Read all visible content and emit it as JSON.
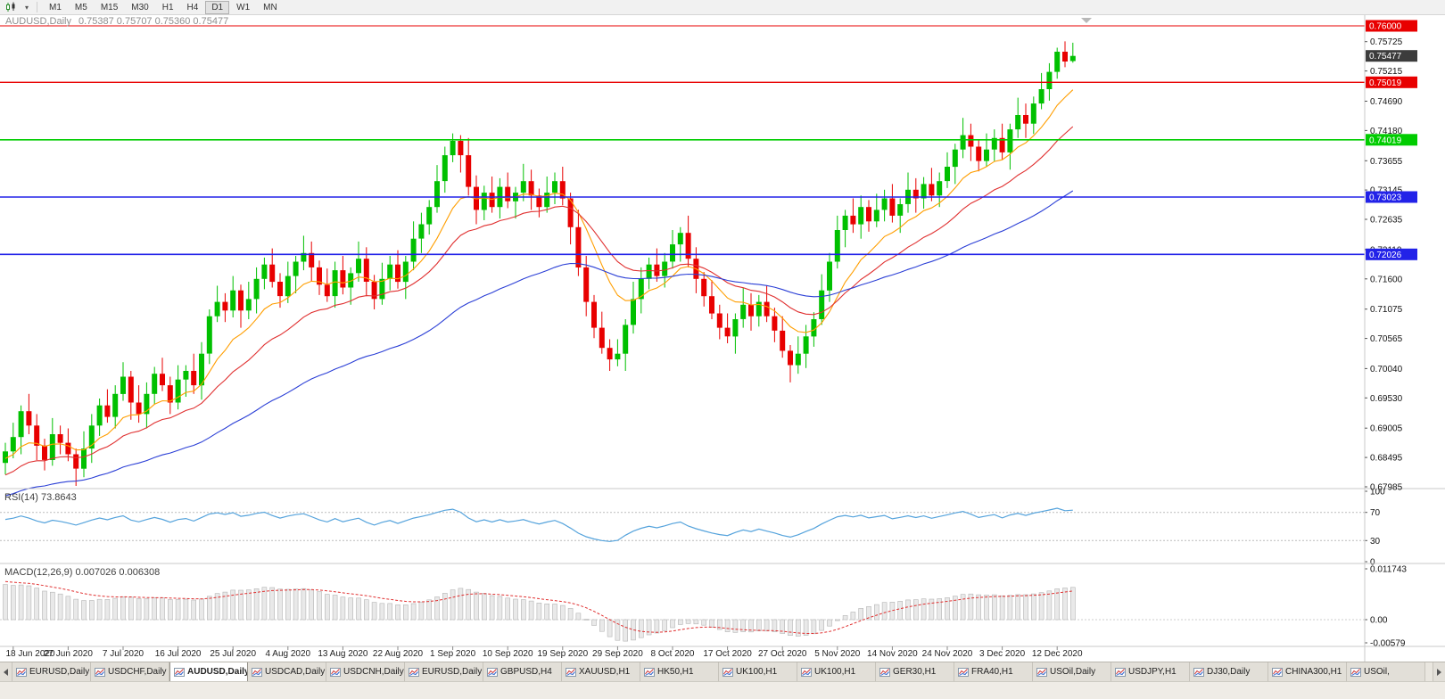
{
  "toolbar": {
    "timeframes": [
      "M1",
      "M5",
      "M15",
      "M30",
      "H1",
      "H4",
      "D1",
      "W1",
      "MN"
    ],
    "active_timeframe": "D1"
  },
  "chart": {
    "title_symbol": "AUDUSD,Daily",
    "title_ohlc": "0.75387 0.75707 0.75360 0.75477"
  },
  "chart_data": {
    "type": "candlestick",
    "symbol": "AUDUSD",
    "period": "Daily",
    "ohlc": {
      "open": 0.75387,
      "high": 0.75707,
      "low": 0.7536,
      "close": 0.75477
    },
    "colors": {
      "up": "#00C000",
      "down": "#E80000"
    },
    "price_axis_labels": [
      "0.75725",
      "0.75215",
      "0.74690",
      "0.74180",
      "0.73655",
      "0.73145",
      "0.72635",
      "0.72110",
      "0.71600",
      "0.71075",
      "0.70565",
      "0.70040",
      "0.69530",
      "0.69005",
      "0.68495",
      "0.67985"
    ],
    "current_price_badge": {
      "label": "0.75477",
      "color": "#3c3c3c"
    },
    "hlines": [
      {
        "label": "0.76000",
        "price": 0.76,
        "color": "#E80000",
        "width": 1
      },
      {
        "label": "0.75019",
        "price": 0.75019,
        "color": "#E80000",
        "width": 1.4
      },
      {
        "label": "0.74019",
        "price": 0.74019,
        "color": "#00CC00",
        "width": 1.6
      },
      {
        "label": "0.73023",
        "price": 0.73023,
        "color": "#2222E8",
        "width": 1.6
      },
      {
        "label": "0.72026",
        "price": 0.72026,
        "color": "#2222E8",
        "width": 1.6
      }
    ],
    "date_labels": [
      "18 Jun 2020",
      "27 Jun 2020",
      "7 Jul 2020",
      "16 Jul 2020",
      "25 Jul 2020",
      "4 Aug 2020",
      "13 Aug 2020",
      "22 Aug 2020",
      "1 Sep 2020",
      "10 Sep 2020",
      "19 Sep 2020",
      "29 Sep 2020",
      "8 Oct 2020",
      "17 Oct 2020",
      "27 Oct 2020",
      "5 Nov 2020",
      "14 Nov 2020",
      "24 Nov 2020",
      "3 Dec 2020",
      "12 Dec 2020"
    ],
    "moving_averages": [
      {
        "period": 10,
        "color": "#FF9E00"
      },
      {
        "period": 21,
        "color": "#E03030"
      },
      {
        "period": 55,
        "color": "#2B3FD6"
      }
    ],
    "indicators": {
      "rsi": {
        "label": "RSI(14) 73.8643",
        "period": 14,
        "value": 73.8643,
        "levels": [
          "100",
          "70",
          "30",
          "0"
        ],
        "line_color": "#55A3DC"
      },
      "macd": {
        "label": "MACD(12,26,9) 0.007026 0.006308",
        "fast": 12,
        "slow": 26,
        "signal": 9,
        "value": 0.007026,
        "signal_value": 0.006308,
        "axis_labels": [
          "0.011743",
          "0.00",
          "-0.00579"
        ],
        "hist_fill": "#E9E9E9",
        "hist_stroke": "#B4B4B4",
        "signal_color": "#E03030"
      }
    },
    "candles": [
      [
        0.684,
        0.6875,
        0.682,
        0.686
      ],
      [
        0.686,
        0.691,
        0.6848,
        0.6885
      ],
      [
        0.6885,
        0.694,
        0.6855,
        0.693
      ],
      [
        0.693,
        0.696,
        0.689,
        0.6905
      ],
      [
        0.6905,
        0.6925,
        0.6845,
        0.687
      ],
      [
        0.687,
        0.6882,
        0.6827,
        0.6845
      ],
      [
        0.6845,
        0.6918,
        0.6835,
        0.689
      ],
      [
        0.689,
        0.6905,
        0.6855,
        0.6875
      ],
      [
        0.6875,
        0.69,
        0.6843,
        0.6855
      ],
      [
        0.6855,
        0.6865,
        0.68,
        0.683
      ],
      [
        0.683,
        0.6895,
        0.6815,
        0.6865
      ],
      [
        0.6865,
        0.6925,
        0.684,
        0.6905
      ],
      [
        0.6905,
        0.6952,
        0.6887,
        0.694
      ],
      [
        0.694,
        0.6968,
        0.691,
        0.692
      ],
      [
        0.692,
        0.6975,
        0.69,
        0.696
      ],
      [
        0.696,
        0.7015,
        0.6948,
        0.699
      ],
      [
        0.699,
        0.7,
        0.6915,
        0.6945
      ],
      [
        0.6945,
        0.6975,
        0.691,
        0.6925
      ],
      [
        0.6925,
        0.698,
        0.69,
        0.696
      ],
      [
        0.696,
        0.7007,
        0.6942,
        0.6995
      ],
      [
        0.6995,
        0.7023,
        0.6965,
        0.6975
      ],
      [
        0.6975,
        0.699,
        0.6925,
        0.6945
      ],
      [
        0.6945,
        0.701,
        0.6933,
        0.6985
      ],
      [
        0.6985,
        0.701,
        0.6955,
        0.7
      ],
      [
        0.7,
        0.703,
        0.696,
        0.6975
      ],
      [
        0.6975,
        0.705,
        0.695,
        0.703
      ],
      [
        0.703,
        0.7107,
        0.7012,
        0.7095
      ],
      [
        0.7095,
        0.7148,
        0.7085,
        0.712
      ],
      [
        0.712,
        0.7135,
        0.7085,
        0.7105
      ],
      [
        0.7105,
        0.7165,
        0.7093,
        0.714
      ],
      [
        0.714,
        0.715,
        0.7075,
        0.7105
      ],
      [
        0.7105,
        0.7155,
        0.709,
        0.7125
      ],
      [
        0.7125,
        0.718,
        0.71,
        0.716
      ],
      [
        0.716,
        0.7197,
        0.7142,
        0.7185
      ],
      [
        0.7185,
        0.7213,
        0.7145,
        0.7155
      ],
      [
        0.7155,
        0.717,
        0.711,
        0.713
      ],
      [
        0.713,
        0.719,
        0.7118,
        0.7165
      ],
      [
        0.7165,
        0.72,
        0.7135,
        0.719
      ],
      [
        0.719,
        0.7235,
        0.7175,
        0.7205
      ],
      [
        0.7205,
        0.7225,
        0.7155,
        0.718
      ],
      [
        0.718,
        0.7192,
        0.7132,
        0.715
      ],
      [
        0.715,
        0.7178,
        0.712,
        0.713
      ],
      [
        0.713,
        0.719,
        0.711,
        0.7175
      ],
      [
        0.7175,
        0.72,
        0.7133,
        0.7145
      ],
      [
        0.7145,
        0.718,
        0.7115,
        0.717
      ],
      [
        0.717,
        0.7225,
        0.7155,
        0.7195
      ],
      [
        0.7195,
        0.7215,
        0.713,
        0.7155
      ],
      [
        0.7155,
        0.7167,
        0.7107,
        0.7125
      ],
      [
        0.7125,
        0.7188,
        0.7115,
        0.716
      ],
      [
        0.716,
        0.72,
        0.714,
        0.7185
      ],
      [
        0.7185,
        0.721,
        0.7143,
        0.7155
      ],
      [
        0.7155,
        0.72,
        0.7125,
        0.719
      ],
      [
        0.719,
        0.726,
        0.7175,
        0.723
      ],
      [
        0.723,
        0.7275,
        0.7205,
        0.7255
      ],
      [
        0.7255,
        0.7297,
        0.7237,
        0.7285
      ],
      [
        0.7285,
        0.7358,
        0.7275,
        0.733
      ],
      [
        0.733,
        0.739,
        0.731,
        0.7375
      ],
      [
        0.7375,
        0.7413,
        0.7363,
        0.74
      ],
      [
        0.74,
        0.741,
        0.7345,
        0.7375
      ],
      [
        0.7375,
        0.7405,
        0.7305,
        0.732
      ],
      [
        0.732,
        0.734,
        0.7255,
        0.728
      ],
      [
        0.728,
        0.7322,
        0.7262,
        0.731
      ],
      [
        0.731,
        0.7338,
        0.7275,
        0.7285
      ],
      [
        0.7285,
        0.7335,
        0.7265,
        0.732
      ],
      [
        0.732,
        0.7345,
        0.7283,
        0.7295
      ],
      [
        0.7295,
        0.732,
        0.7265,
        0.731
      ],
      [
        0.731,
        0.736,
        0.7295,
        0.733
      ],
      [
        0.733,
        0.735,
        0.728,
        0.7305
      ],
      [
        0.7305,
        0.7317,
        0.7267,
        0.7285
      ],
      [
        0.7285,
        0.7338,
        0.7275,
        0.731
      ],
      [
        0.731,
        0.7345,
        0.729,
        0.733
      ],
      [
        0.733,
        0.7355,
        0.7288,
        0.73
      ],
      [
        0.73,
        0.731,
        0.722,
        0.725
      ],
      [
        0.725,
        0.728,
        0.7165,
        0.718
      ],
      [
        0.718,
        0.72,
        0.7095,
        0.712
      ],
      [
        0.712,
        0.7132,
        0.7057,
        0.7075
      ],
      [
        0.7075,
        0.7103,
        0.703,
        0.704
      ],
      [
        0.704,
        0.7055,
        0.7,
        0.702
      ],
      [
        0.702,
        0.7055,
        0.7008,
        0.703
      ],
      [
        0.703,
        0.709,
        0.7,
        0.708
      ],
      [
        0.708,
        0.7155,
        0.7065,
        0.7125
      ],
      [
        0.7125,
        0.718,
        0.71,
        0.716
      ],
      [
        0.716,
        0.7197,
        0.7142,
        0.7185
      ],
      [
        0.7185,
        0.7213,
        0.7155,
        0.7165
      ],
      [
        0.7165,
        0.7205,
        0.7145,
        0.719
      ],
      [
        0.719,
        0.7245,
        0.7178,
        0.722
      ],
      [
        0.722,
        0.725,
        0.719,
        0.724
      ],
      [
        0.724,
        0.727,
        0.718,
        0.7195
      ],
      [
        0.7195,
        0.7215,
        0.7135,
        0.716
      ],
      [
        0.716,
        0.7172,
        0.7112,
        0.713
      ],
      [
        0.713,
        0.7158,
        0.709,
        0.71
      ],
      [
        0.71,
        0.7115,
        0.7055,
        0.7075
      ],
      [
        0.7075,
        0.71,
        0.7048,
        0.706
      ],
      [
        0.706,
        0.71,
        0.703,
        0.709
      ],
      [
        0.709,
        0.7145,
        0.7075,
        0.7115
      ],
      [
        0.7115,
        0.7135,
        0.707,
        0.7095
      ],
      [
        0.7095,
        0.7132,
        0.7077,
        0.712
      ],
      [
        0.712,
        0.7148,
        0.7085,
        0.7095
      ],
      [
        0.7095,
        0.711,
        0.705,
        0.707
      ],
      [
        0.707,
        0.7095,
        0.7023,
        0.7035
      ],
      [
        0.7035,
        0.7045,
        0.698,
        0.701
      ],
      [
        0.701,
        0.706,
        0.6995,
        0.703
      ],
      [
        0.703,
        0.708,
        0.7005,
        0.706
      ],
      [
        0.706,
        0.7102,
        0.7042,
        0.709
      ],
      [
        0.709,
        0.7168,
        0.708,
        0.714
      ],
      [
        0.714,
        0.7205,
        0.712,
        0.719
      ],
      [
        0.719,
        0.727,
        0.7178,
        0.7245
      ],
      [
        0.7245,
        0.728,
        0.7215,
        0.727
      ],
      [
        0.727,
        0.73,
        0.724,
        0.7255
      ],
      [
        0.7255,
        0.7305,
        0.723,
        0.7285
      ],
      [
        0.7285,
        0.7297,
        0.7242,
        0.726
      ],
      [
        0.726,
        0.7308,
        0.725,
        0.728
      ],
      [
        0.728,
        0.7315,
        0.726,
        0.73
      ],
      [
        0.73,
        0.7325,
        0.7258,
        0.727
      ],
      [
        0.727,
        0.73,
        0.724,
        0.729
      ],
      [
        0.729,
        0.7345,
        0.7275,
        0.7315
      ],
      [
        0.7315,
        0.7335,
        0.7275,
        0.73
      ],
      [
        0.73,
        0.7337,
        0.7282,
        0.7325
      ],
      [
        0.7325,
        0.7353,
        0.7295,
        0.7305
      ],
      [
        0.7305,
        0.7345,
        0.7285,
        0.733
      ],
      [
        0.733,
        0.738,
        0.7318,
        0.7355
      ],
      [
        0.7355,
        0.7395,
        0.7325,
        0.7385
      ],
      [
        0.7385,
        0.744,
        0.737,
        0.741
      ],
      [
        0.741,
        0.743,
        0.7365,
        0.739
      ],
      [
        0.739,
        0.7402,
        0.7347,
        0.7365
      ],
      [
        0.7365,
        0.7413,
        0.7355,
        0.7385
      ],
      [
        0.7385,
        0.742,
        0.7365,
        0.7405
      ],
      [
        0.7405,
        0.743,
        0.7368,
        0.738
      ],
      [
        0.738,
        0.743,
        0.735,
        0.742
      ],
      [
        0.742,
        0.7475,
        0.7405,
        0.7445
      ],
      [
        0.7445,
        0.7465,
        0.7405,
        0.743
      ],
      [
        0.743,
        0.7477,
        0.7412,
        0.7465
      ],
      [
        0.7465,
        0.7518,
        0.7455,
        0.749
      ],
      [
        0.749,
        0.7535,
        0.747,
        0.752
      ],
      [
        0.752,
        0.7562,
        0.7508,
        0.7555
      ],
      [
        0.7555,
        0.7573,
        0.7528,
        0.7538
      ],
      [
        0.75387,
        0.75707,
        0.7536,
        0.75477
      ]
    ]
  },
  "tabbar": {
    "items": [
      {
        "label": "EURUSD,Daily",
        "active": false
      },
      {
        "label": "USDCHF,Daily",
        "active": false
      },
      {
        "label": "AUDUSD,Daily",
        "active": true
      },
      {
        "label": "USDCAD,Daily",
        "active": false
      },
      {
        "label": "USDCNH,Daily",
        "active": false
      },
      {
        "label": "EURUSD,Daily",
        "active": false
      },
      {
        "label": "GBPUSD,H4",
        "active": false
      },
      {
        "label": "XAUUSD,H1",
        "active": false
      },
      {
        "label": "HK50,H1",
        "active": false
      },
      {
        "label": "UK100,H1",
        "active": false
      },
      {
        "label": "UK100,H1",
        "active": false
      },
      {
        "label": "GER30,H1",
        "active": false
      },
      {
        "label": "FRA40,H1",
        "active": false
      },
      {
        "label": "USOil,Daily",
        "active": false
      },
      {
        "label": "USDJPY,H1",
        "active": false
      },
      {
        "label": "DJ30,Daily",
        "active": false
      },
      {
        "label": "CHINA300,H1",
        "active": false
      },
      {
        "label": "USOil,",
        "active": false
      }
    ]
  }
}
